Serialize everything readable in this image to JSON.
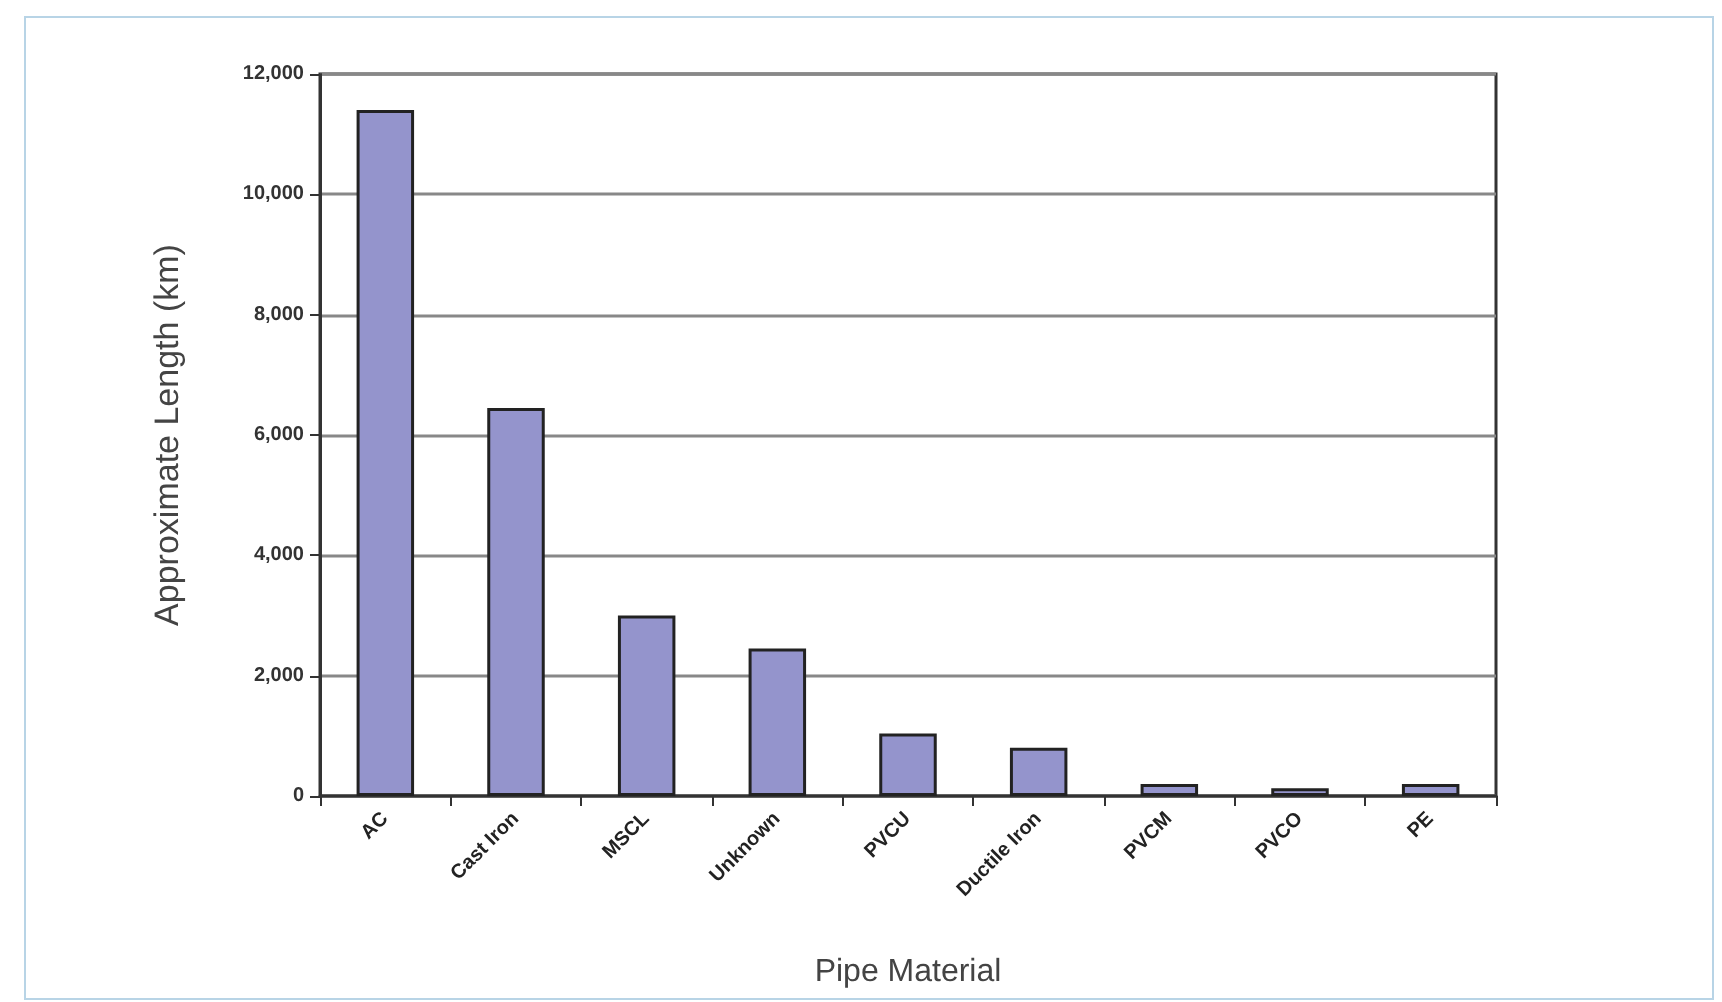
{
  "chart_data": {
    "type": "bar",
    "xlabel": "Pipe Material",
    "ylabel": "Approximate Length (km)",
    "categories": [
      "AC",
      "Cast Iron",
      "MSCL",
      "Unknown",
      "PVCU",
      "Ductile Iron",
      "PVCM",
      "PVCO",
      "PE"
    ],
    "values": [
      11400,
      6450,
      3000,
      2450,
      1040,
      800,
      200,
      130,
      200
    ],
    "color": "#9494cc",
    "ylim": [
      0,
      12000
    ],
    "yticks": [
      0,
      {
        "value": 2000,
        "label": "2,000"
      },
      {
        "value": 4000,
        "label": "4,000"
      },
      {
        "value": 6000,
        "label": "6,000"
      },
      {
        "value": 8000,
        "label": "8,000"
      },
      {
        "value": 10000,
        "label": "10,000"
      },
      {
        "value": 12000,
        "label": "12,000"
      }
    ],
    "grid": "y"
  }
}
